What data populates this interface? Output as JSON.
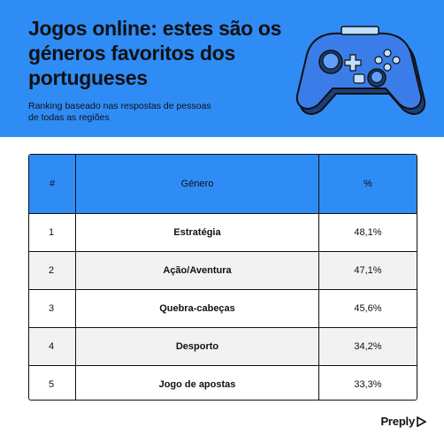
{
  "header": {
    "title": "Jogos online: estes são os géneros favoritos dos portugueses",
    "subtitle": "Ranking baseado nas respostas de pessoas de todas as regiões",
    "background_color": "#2f8cf5",
    "icon": "game-controller-icon"
  },
  "table": {
    "columns": [
      "#",
      "Género",
      "%"
    ],
    "rows": [
      {
        "rank": "1",
        "genre": "Estratégia",
        "pct": "48,1%"
      },
      {
        "rank": "2",
        "genre": "Ação/Aventura",
        "pct": "47,1%"
      },
      {
        "rank": "3",
        "genre": "Quebra-cabeças",
        "pct": "45,6%"
      },
      {
        "rank": "4",
        "genre": "Desporto",
        "pct": "34,2%"
      },
      {
        "rank": "5",
        "genre": "Jogo de apostas",
        "pct": "33,3%"
      }
    ]
  },
  "footer": {
    "logo": "Preply"
  }
}
